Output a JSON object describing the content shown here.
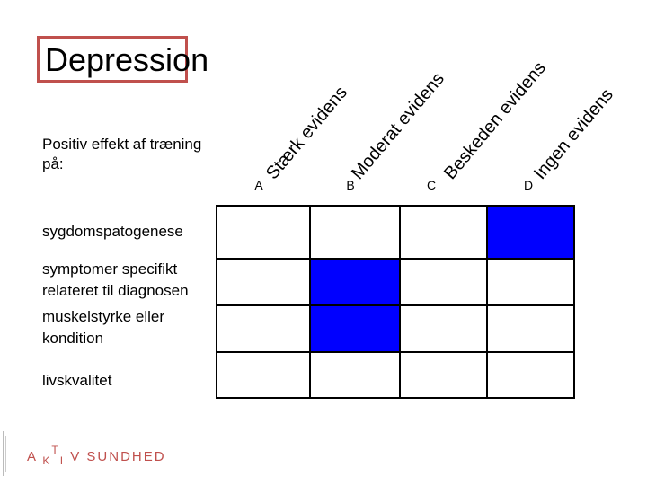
{
  "title": "Depression",
  "subtitle": "Positiv effekt af træning på:",
  "columns": [
    {
      "header": "Stærk evidens",
      "letter": "A"
    },
    {
      "header": "Moderat evidens",
      "letter": "B"
    },
    {
      "header": "Beskeden evidens",
      "letter": "C"
    },
    {
      "header": "Ingen evidens",
      "letter": "D"
    }
  ],
  "rows": [
    {
      "label": "sygdomspatogenese",
      "evidence": "D"
    },
    {
      "label": "symptomer specifikt relateret til diagnosen",
      "evidence": "B"
    },
    {
      "label": "muskelstyrke eller kondition",
      "evidence": "B"
    },
    {
      "label": "livskvalitet",
      "evidence": ""
    }
  ],
  "logo": {
    "a": "A",
    "k": "K",
    "t": "T",
    "i": "I",
    "v": "V",
    "rest": "SUNDHED"
  },
  "colors": {
    "accent": "#c0504d",
    "filled": "#0000ff",
    "grid": "#000000"
  }
}
